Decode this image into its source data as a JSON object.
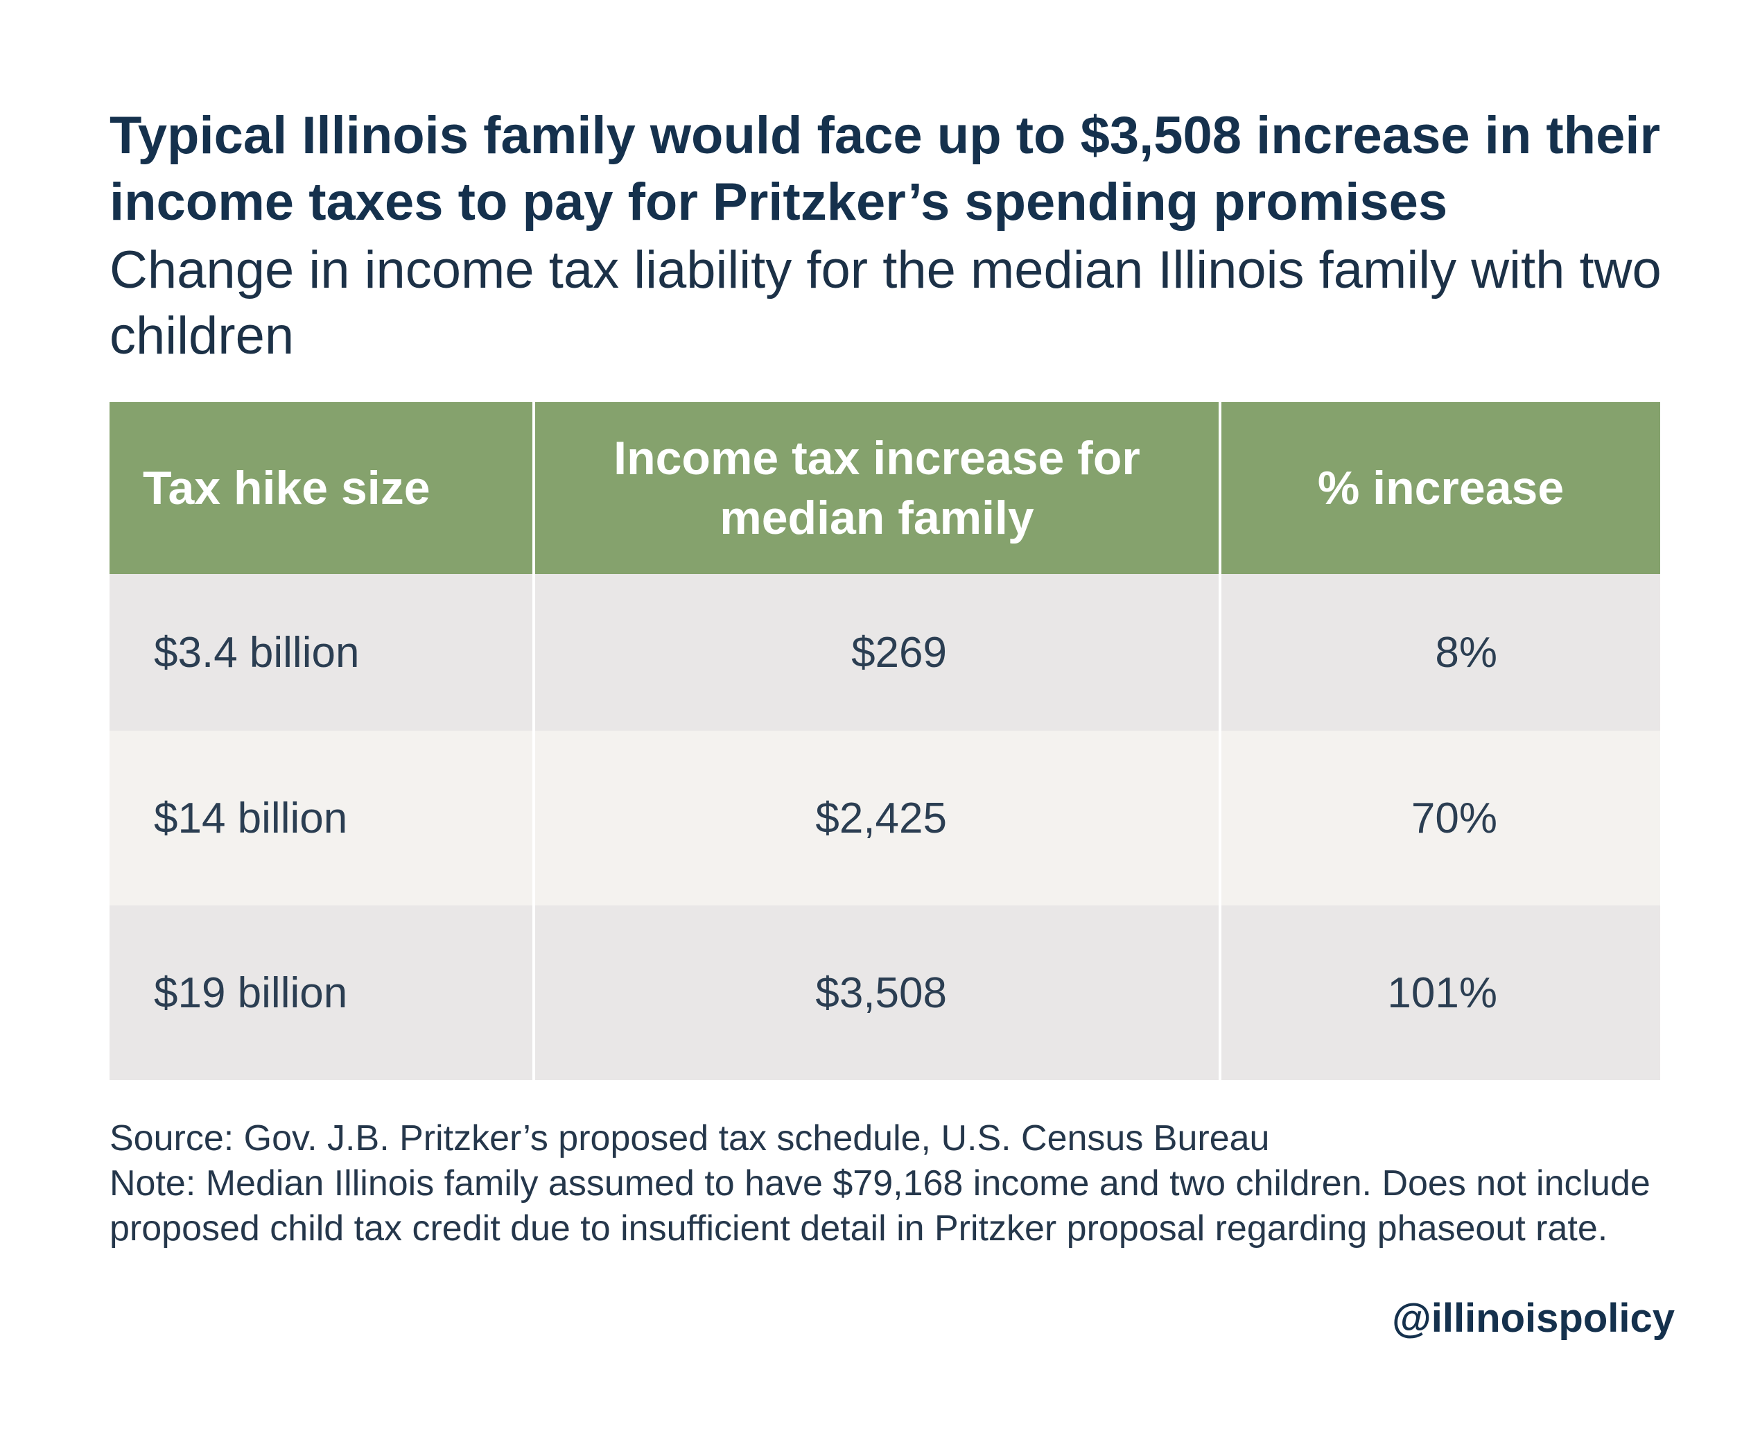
{
  "header": {
    "title": "Typical Illinois family would face up to $3,508 increase in their income taxes to pay for Pritzker’s spending promises",
    "subtitle": "Change in income tax liability for the median Illinois family with two children"
  },
  "table": {
    "columns": [
      "Tax hike size",
      "Income tax increase for median family",
      "% increase"
    ],
    "rows": [
      {
        "tax_hike_size": "$3.4 billion",
        "increase": "$269",
        "percent": "8%"
      },
      {
        "tax_hike_size": "$14 billion",
        "increase": "$2,425",
        "percent": "70%"
      },
      {
        "tax_hike_size": "$19 billion",
        "increase": "$3,508",
        "percent": "101%"
      }
    ]
  },
  "chart_data": {
    "type": "table",
    "title": "Typical Illinois family would face up to $3,508 increase in their income taxes to pay for Pritzker’s spending promises",
    "subtitle": "Change in income tax liability for the median Illinois family with two children",
    "columns": [
      "Tax hike size",
      "Income tax increase for median family",
      "% increase"
    ],
    "rows": [
      [
        "$3.4 billion",
        "$269",
        "8%"
      ],
      [
        "$14 billion",
        "$2,425",
        "70%"
      ],
      [
        "$19 billion",
        "$3,508",
        "101%"
      ]
    ],
    "header_color": "#85a26d",
    "row_colors": [
      "#e9e7e7",
      "#f4f2ef",
      "#e9e7e7"
    ]
  },
  "footer": {
    "source": "Source: Gov. J.B. Pritzker’s proposed tax schedule, U.S. Census Bureau",
    "note": "Note: Median Illinois family assumed to have $79,168 income and two children. Does not include proposed child tax credit due to insufficient detail in Pritzker proposal regarding phaseout rate.",
    "handle": "@illinoispolicy"
  },
  "colors": {
    "title": "#15314d",
    "header_background": "#85a26d",
    "header_text": "#ffffff",
    "row_odd": "#e9e7e7",
    "row_even": "#f4f2ef"
  }
}
